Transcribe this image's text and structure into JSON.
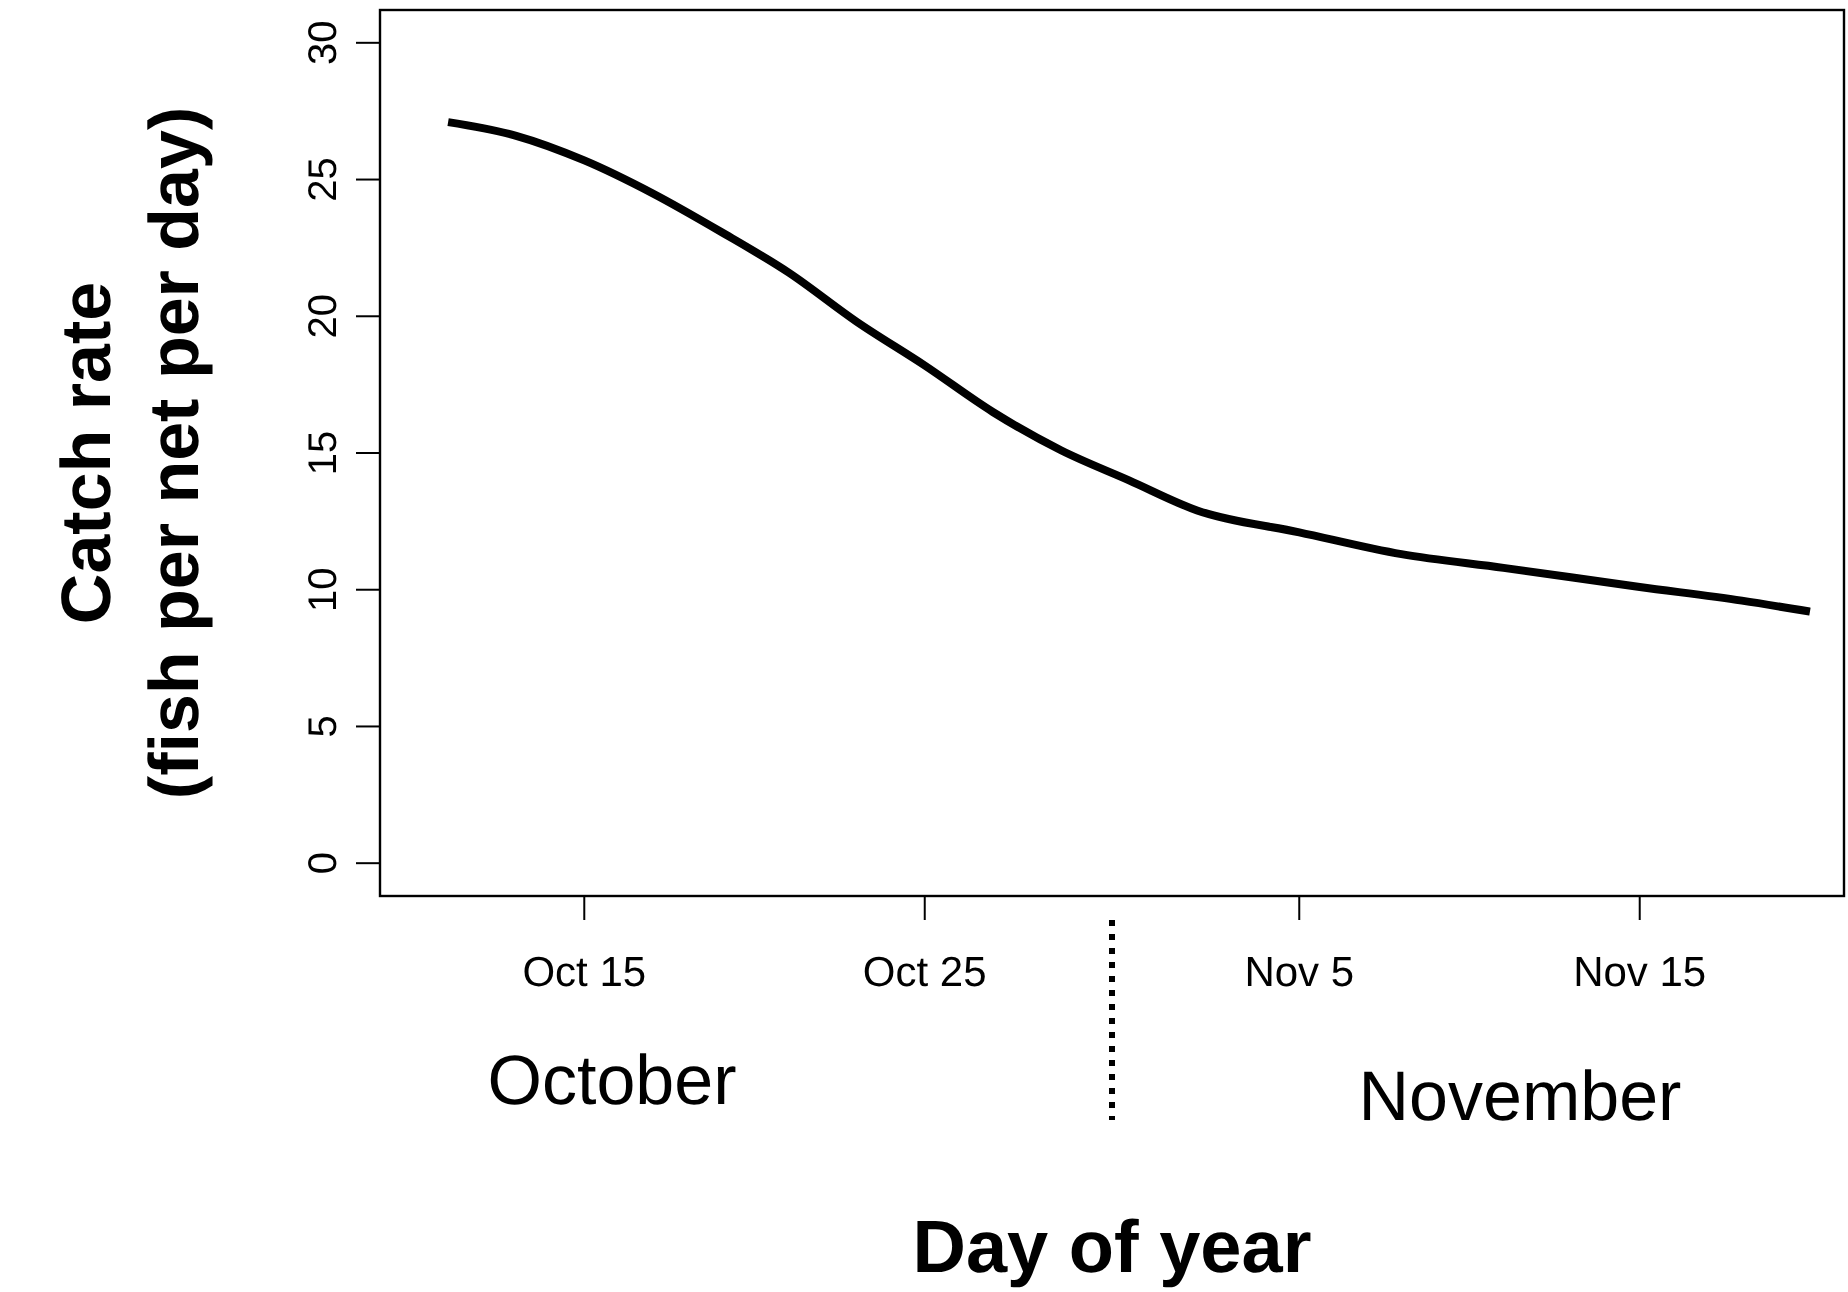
{
  "chart_data": {
    "type": "line",
    "xlabel": "Day of year",
    "ylabel": "Catch rate\n(fish per net per day)",
    "x": [
      "--10-11",
      "--10-13",
      "--10-15",
      "--10-17",
      "--10-19",
      "--10-21",
      "--10-23",
      "--10-25",
      "--10-27",
      "--10-29",
      "--10-31",
      "--11-02",
      "--11-05",
      "--11-08",
      "--11-11",
      "--11-15",
      "--11-18",
      "--11-20"
    ],
    "series": [
      {
        "color": "#000000",
        "values": [
          27.1,
          26.6,
          25.7,
          24.5,
          23.1,
          21.6,
          19.8,
          18.2,
          16.5,
          15.1,
          14.0,
          12.9,
          12.1,
          11.3,
          10.8,
          10.1,
          9.6,
          9.2
        ]
      }
    ],
    "xlim": [
      "--10-09",
      "--11-21"
    ],
    "xticks": [
      {
        "value": "--10-15",
        "label": "Oct 15"
      },
      {
        "value": "--10-25",
        "label": "Oct 25"
      },
      {
        "value": "--11-05",
        "label": "Nov 5"
      },
      {
        "value": "--11-15",
        "label": "Nov 15"
      }
    ],
    "ylim": [
      -1.2,
      31.2
    ],
    "yticks": [
      0,
      5,
      10,
      15,
      20,
      25,
      30
    ],
    "annotations": [
      "October",
      "November"
    ],
    "line_style": "solid",
    "marker": "none"
  }
}
